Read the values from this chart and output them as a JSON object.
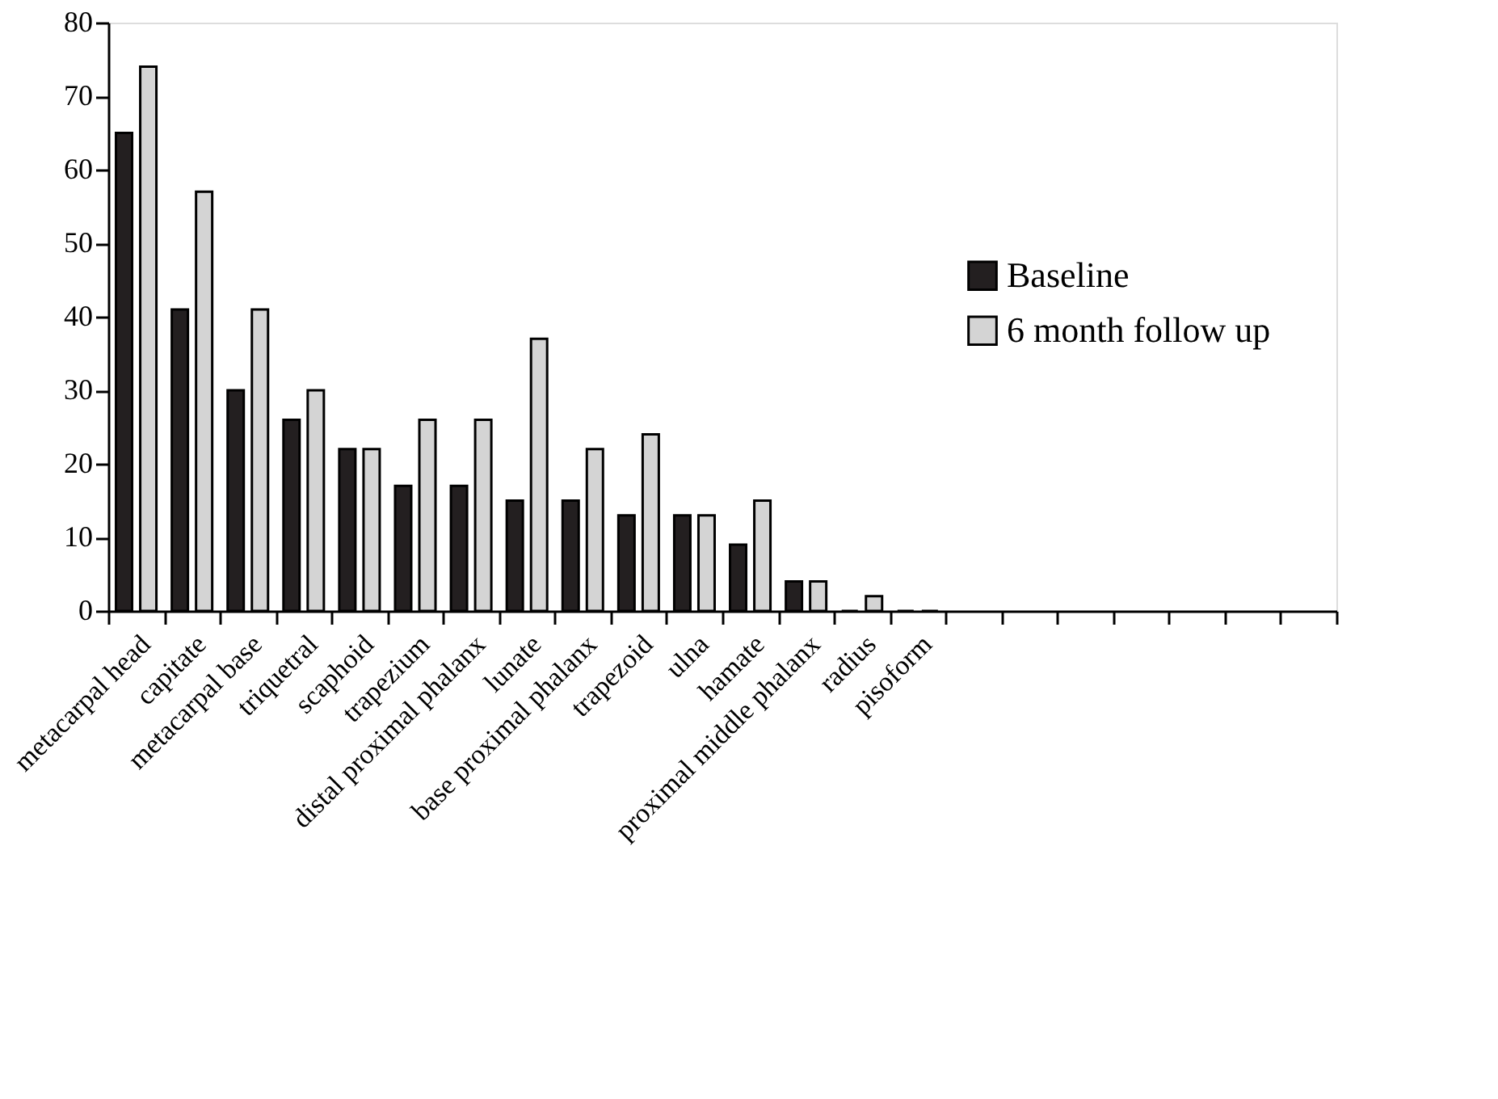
{
  "chart_data": {
    "type": "bar",
    "categories": [
      "metacarpal head",
      "capitate",
      "metacarpal base",
      "triquetral",
      "scaphoid",
      "trapezium",
      "distal proximal phalanx",
      "lunate",
      "base proximal phalanx",
      "trapezoid",
      "ulna",
      "hamate",
      "proximal middle phalanx",
      "radius",
      "pisoform",
      null,
      null,
      null,
      null,
      null,
      null,
      null
    ],
    "series": [
      {
        "name": "Baseline",
        "color": "#231f20",
        "values": [
          65,
          41,
          30,
          26,
          22,
          17,
          17,
          15,
          15,
          13,
          13,
          9,
          4,
          0,
          0,
          null,
          null,
          null,
          null,
          null,
          null,
          null
        ]
      },
      {
        "name": "6 month follow up",
        "color": "#d4d4d4",
        "values": [
          74,
          57,
          41,
          30,
          22,
          26,
          26,
          37,
          22,
          24,
          13,
          15,
          4,
          2,
          0,
          null,
          null,
          null,
          null,
          null,
          null,
          null
        ]
      }
    ],
    "ylim": [
      0,
      80
    ],
    "yticks": [
      0,
      10,
      20,
      30,
      40,
      50,
      60,
      70,
      80
    ],
    "grid": false,
    "legend": "right"
  }
}
